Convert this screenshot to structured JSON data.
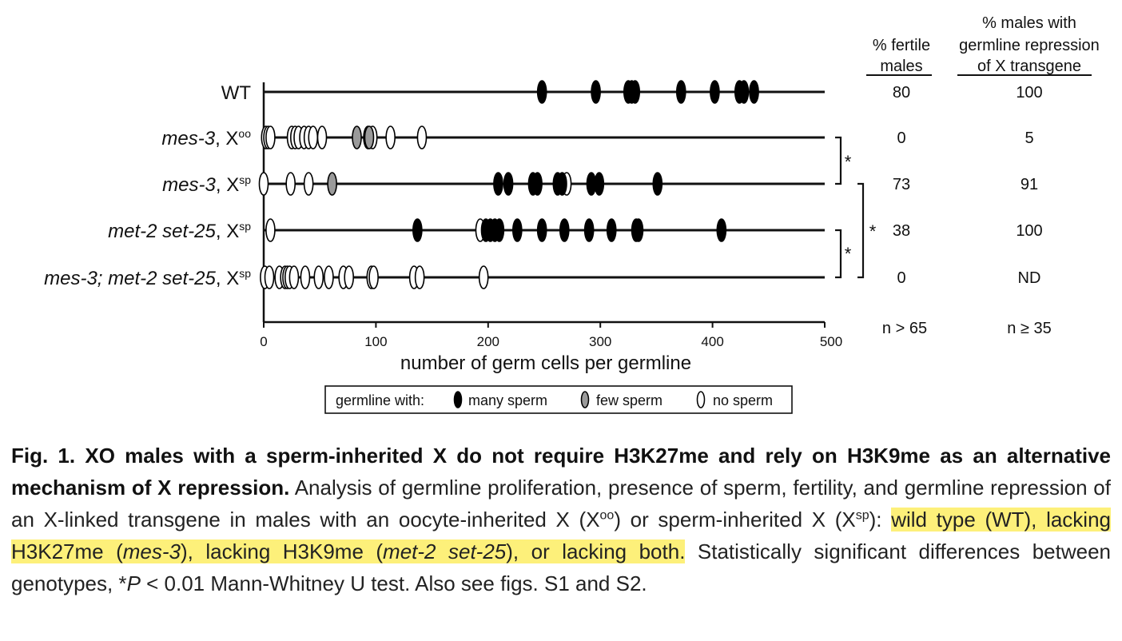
{
  "chart_data": {
    "type": "scatter",
    "xlabel": "number of germ cells per germline",
    "xlim": [
      0,
      500
    ],
    "xticks": [
      0,
      100,
      200,
      300,
      400,
      500
    ],
    "legend": {
      "placement": "bottom",
      "title": "germline with:",
      "items": [
        {
          "key": "many",
          "label": "many sperm",
          "color": "#000000"
        },
        {
          "key": "few",
          "label": "few sperm",
          "color": "#9a9a9a"
        },
        {
          "key": "none",
          "label": "no sperm",
          "color": "#ffffff"
        }
      ]
    },
    "rows": [
      {
        "label": "WT",
        "italic": "",
        "sup": "",
        "many": [
          248,
          296,
          325,
          328,
          331,
          372,
          402,
          424,
          428,
          437
        ],
        "few": [],
        "none": [],
        "fertile": "80",
        "repression": "100"
      },
      {
        "label": ", X",
        "italic": "mes-3",
        "sup": "oo",
        "many": [],
        "few": [
          83,
          94
        ],
        "none": [
          2,
          4,
          6,
          25,
          28,
          31,
          36,
          40,
          44,
          52,
          93,
          97,
          113,
          141
        ],
        "fertile": "0",
        "repression": "5"
      },
      {
        "label": ", X",
        "italic": "mes-3",
        "sup": "sp",
        "many": [
          209,
          218,
          240,
          244,
          262,
          266,
          292,
          299,
          351
        ],
        "few": [
          61
        ],
        "none": [
          0,
          24,
          40,
          270
        ],
        "fertile": "73",
        "repression": "91"
      },
      {
        "label": ", X",
        "italic": "met-2 set-25",
        "sup": "sp",
        "many": [
          137,
          198,
          202,
          206,
          210,
          226,
          248,
          268,
          290,
          310,
          332,
          334,
          408
        ],
        "few": [],
        "none": [
          6,
          193
        ],
        "fertile": "38",
        "repression": "100"
      },
      {
        "label": ", X",
        "italic": "mes-3; met-2 set-25",
        "sup": "sp",
        "many": [],
        "few": [],
        "none": [
          1,
          5,
          14,
          19,
          21,
          23,
          27,
          37,
          49,
          58,
          71,
          76,
          96,
          98,
          134,
          139,
          196
        ],
        "fertile": "0",
        "repression": "ND"
      }
    ],
    "columns": {
      "fertile": [
        "% fertile",
        "males"
      ],
      "repression": [
        "% males with",
        "germline repression",
        "of X transgene"
      ]
    },
    "n": {
      "fertile": "n > 65",
      "repression": "n ≥ 35"
    },
    "significance_mark": "*"
  },
  "caption": {
    "bold": "Fig. 1. XO males with a sperm-inherited X do not require H3K27me and rely on H3K9me as an alternative mechanism of X repression.",
    "text1": " Analysis of germline proliferation, presence of sperm, fertility, and germline repression of an X-linked transgene in males with an oocyte-inherited X (X",
    "sup1": "oo",
    "text2": ") or sperm-inherited X (X",
    "sup2": "sp",
    "text3": "): ",
    "hl_a": "wild type (WT), lacking H3K27me (",
    "hl_i1": "mes-3",
    "hl_b": "), lacking H3K9me (",
    "hl_i2": "met-2 set-25",
    "hl_c": "), or lacking both.",
    "text4": " Statistically significant differences between genotypes, *",
    "italic_p": "P",
    "text5": " < 0.01 Mann-Whitney U test. Also see figs. S1 and S2."
  }
}
